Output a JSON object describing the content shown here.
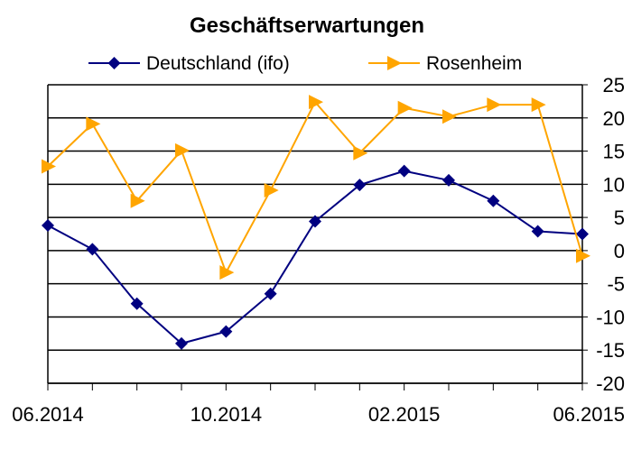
{
  "chart_data": {
    "type": "line",
    "title": "Geschäftserwartungen",
    "x": [
      "06.2014",
      "07.2014",
      "08.2014",
      "09.2014",
      "10.2014",
      "11.2014",
      "12.2014",
      "01.2015",
      "02.2015",
      "03.2015",
      "04.2015",
      "05.2015",
      "06.2015"
    ],
    "x_tick_labels": [
      "06.2014",
      "10.2014",
      "02.2015",
      "06.2015"
    ],
    "series": [
      {
        "name": "Deutschland (ifo)",
        "color": "#000080",
        "marker": "diamond",
        "values": [
          3.8,
          0.2,
          -8,
          -14,
          -12.2,
          -6.5,
          4.4,
          9.9,
          12.0,
          10.6,
          7.5,
          2.9,
          2.5
        ]
      },
      {
        "name": "Rosenheim",
        "color": "#ffa500",
        "marker": "triangle-right",
        "values": [
          12.7,
          19.1,
          7.5,
          15.1,
          -3.3,
          9.1,
          22.4,
          14.7,
          21.5,
          20.2,
          22.0,
          22.0,
          -0.8
        ]
      }
    ],
    "ylim": [
      -20,
      25
    ],
    "y_ticks": [
      25,
      20,
      15,
      10,
      5,
      0,
      -5,
      -10,
      -15,
      -20
    ],
    "y_axis_side": "right",
    "grid": "horizontal",
    "legend_position": "top"
  }
}
